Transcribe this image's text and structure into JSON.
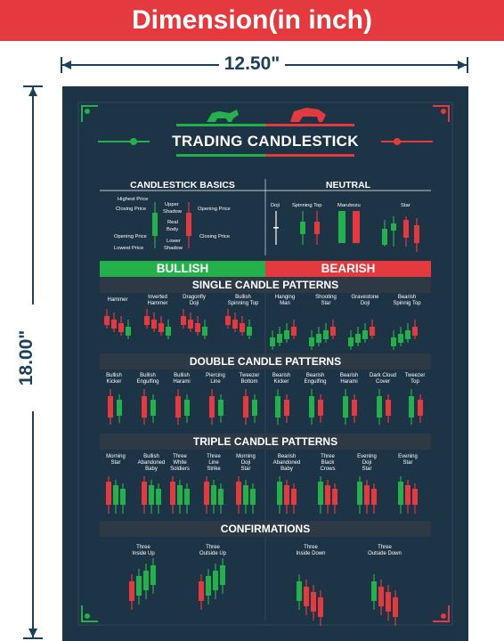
{
  "header": {
    "title": "Dimension(in inch)"
  },
  "dimensions": {
    "width": "12.50\"",
    "height": "18.00\""
  },
  "poster": {
    "title": "TRADING CANDLESTICK",
    "basics": {
      "heading": "CANDLESTICK BASICS",
      "labels": {
        "highest": "Highest Price",
        "closing1": "Closing Price",
        "upper": "Upper",
        "shadow1": "Shadow",
        "opening1": "Opening Price",
        "real": "Real",
        "body": "Body",
        "opening2": "Opening Price",
        "lower": "Lower",
        "shadow2": "Shadow",
        "closing2": "Closing Price",
        "lowest": "Lowest Price"
      }
    },
    "neutral": {
      "heading": "NEUTRAL",
      "items": [
        "Doji",
        "Spinning Top",
        "Marubozu",
        "Star"
      ]
    },
    "bullish": "BULLISH",
    "bearish": "BEARISH",
    "single": {
      "heading": "SINGLE CANDLE PATTERNS",
      "items": [
        [
          "Hammer",
          ""
        ],
        [
          "Inverted",
          "Hammer"
        ],
        [
          "Dragonfly",
          "Doji"
        ],
        [
          "Bullish",
          "Spinning Top"
        ],
        [
          "Hanging",
          "Man"
        ],
        [
          "Shooting",
          "Star"
        ],
        [
          "Gravestone",
          "Doji"
        ],
        [
          "Bearish",
          "Spinnig Top"
        ]
      ]
    },
    "double": {
      "heading": "DOUBLE CANDLE PATTERNS",
      "items": [
        [
          "Bullish",
          "Kicker"
        ],
        [
          "Bullish",
          "Engulfing"
        ],
        [
          "Bullish",
          "Harami"
        ],
        [
          "Piercing",
          "Line"
        ],
        [
          "Tweezer",
          "Bottom"
        ],
        [
          "Bearish",
          "Kicker"
        ],
        [
          "Bearish",
          "Engulfing"
        ],
        [
          "Bearish",
          "Harami"
        ],
        [
          "Dark Cloud",
          "Cover"
        ],
        [
          "Tweezer",
          "Top"
        ]
      ]
    },
    "triple": {
      "heading": "TRIPLE CANDLE PATTERNS",
      "items": [
        [
          "Morning",
          "Star",
          ""
        ],
        [
          "Bullish",
          "Abandoned",
          "Baby"
        ],
        [
          "Three",
          "White",
          "Soldiers"
        ],
        [
          "Three",
          "Line",
          "Strike"
        ],
        [
          "Morning",
          "Doji",
          "Star"
        ],
        [
          "Bearish",
          "Abandoned",
          "Baby"
        ],
        [
          "Three",
          "Black",
          "Crows"
        ],
        [
          "Evening",
          "Doji",
          "Star"
        ],
        [
          "Evening",
          "Star",
          ""
        ]
      ]
    },
    "confirmations": {
      "heading": "CONFIRMATIONS",
      "items": [
        [
          "Three",
          "Inside Up"
        ],
        [
          "Three",
          "Outside Up"
        ],
        [
          "Three",
          "Inside Down"
        ],
        [
          "Three",
          "Outside Down"
        ]
      ]
    },
    "colors": {
      "green": "#24b04a",
      "red": "#e43a3f",
      "background": "#1d3346",
      "band": "#2d3a46"
    }
  }
}
